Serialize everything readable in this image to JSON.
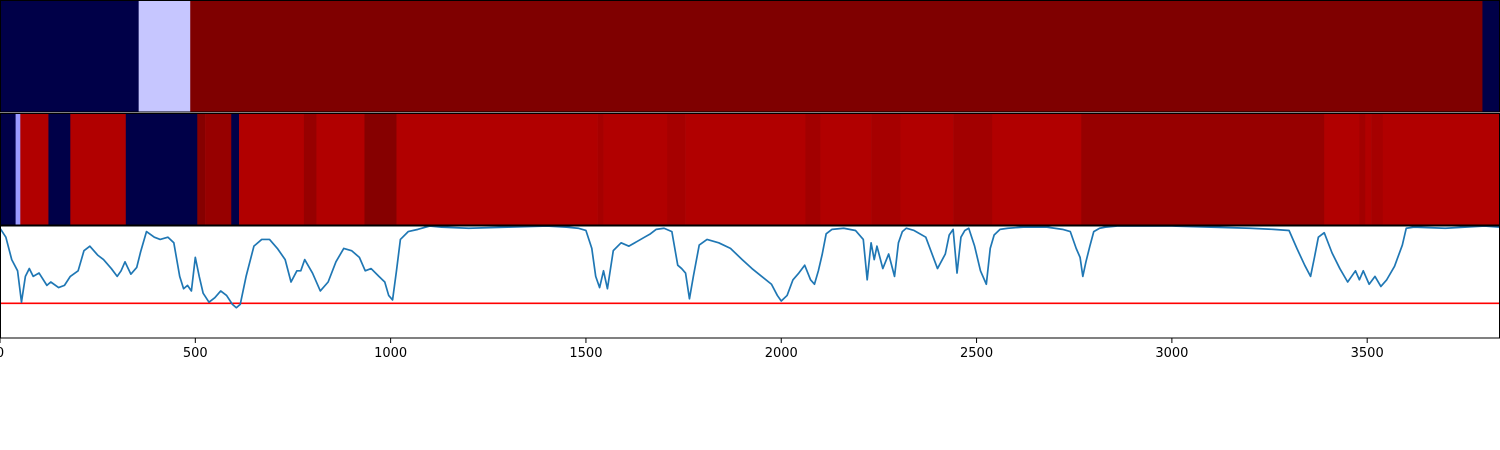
{
  "chart_data": [
    {
      "type": "heatmap",
      "panel": "top-strip",
      "colors": {
        "dark_blue": "#000048",
        "light_blue": "#c6c6ff",
        "dark_red": "#7f0000"
      },
      "segments": [
        {
          "start": 0,
          "end": 355,
          "color": "#000048"
        },
        {
          "start": 355,
          "end": 487,
          "color": "#c6c6ff"
        },
        {
          "start": 487,
          "end": 3795,
          "color": "#7f0000"
        },
        {
          "start": 3795,
          "end": 3840,
          "color": "#000048"
        }
      ]
    },
    {
      "type": "heatmap",
      "panel": "middle-strip",
      "colors": {
        "navy": "#000048",
        "lavender": "#9a9aff",
        "red": "#b10000",
        "dark_red": "#970000",
        "deep_red": "#860000"
      },
      "segments": [
        {
          "start": 0,
          "end": 40,
          "color": "#000048"
        },
        {
          "start": 40,
          "end": 52,
          "color": "#9a9aff"
        },
        {
          "start": 52,
          "end": 124,
          "color": "#b10000"
        },
        {
          "start": 124,
          "end": 180,
          "color": "#000048"
        },
        {
          "start": 180,
          "end": 322,
          "color": "#b10000"
        },
        {
          "start": 322,
          "end": 505,
          "color": "#000048"
        },
        {
          "start": 505,
          "end": 525,
          "color": "#860000"
        },
        {
          "start": 525,
          "end": 592,
          "color": "#970000"
        },
        {
          "start": 592,
          "end": 612,
          "color": "#000048"
        },
        {
          "start": 612,
          "end": 778,
          "color": "#b10000"
        },
        {
          "start": 778,
          "end": 810,
          "color": "#970000"
        },
        {
          "start": 810,
          "end": 933,
          "color": "#b10000"
        },
        {
          "start": 933,
          "end": 1015,
          "color": "#860000"
        },
        {
          "start": 1015,
          "end": 1530,
          "color": "#b10000"
        },
        {
          "start": 1530,
          "end": 1545,
          "color": "#a60000"
        },
        {
          "start": 1545,
          "end": 1708,
          "color": "#b10000"
        },
        {
          "start": 1708,
          "end": 1755,
          "color": "#a60000"
        },
        {
          "start": 1755,
          "end": 2062,
          "color": "#b10000"
        },
        {
          "start": 2062,
          "end": 2100,
          "color": "#a20000"
        },
        {
          "start": 2100,
          "end": 2230,
          "color": "#b10000"
        },
        {
          "start": 2230,
          "end": 2305,
          "color": "#a60000"
        },
        {
          "start": 2305,
          "end": 2440,
          "color": "#b10000"
        },
        {
          "start": 2440,
          "end": 2540,
          "color": "#a20000"
        },
        {
          "start": 2540,
          "end": 2768,
          "color": "#b10000"
        },
        {
          "start": 2768,
          "end": 3390,
          "color": "#970000"
        },
        {
          "start": 3390,
          "end": 3480,
          "color": "#b10000"
        },
        {
          "start": 3480,
          "end": 3495,
          "color": "#a20000"
        },
        {
          "start": 3495,
          "end": 3510,
          "color": "#b10000"
        },
        {
          "start": 3510,
          "end": 3540,
          "color": "#a60000"
        },
        {
          "start": 3540,
          "end": 3840,
          "color": "#b10000"
        }
      ]
    },
    {
      "type": "line",
      "panel": "bottom-plot",
      "xlim": [
        0,
        3840
      ],
      "ylim": [
        0,
        1
      ],
      "x_ticks": [
        0,
        500,
        1000,
        1500,
        2000,
        2500,
        3000,
        3500
      ],
      "tick_labels": [
        "0",
        "500",
        "1000",
        "1500",
        "2000",
        "2500",
        "3000",
        "3500"
      ],
      "line_color": "#1f77b4",
      "threshold": 0.31,
      "threshold_color": "#ff0000",
      "series": [
        {
          "x": [
            0,
            15,
            30,
            45,
            55,
            65,
            75,
            85,
            100,
            120,
            130,
            150,
            165,
            180,
            200,
            215,
            230,
            250,
            265,
            285,
            300,
            310,
            320,
            335,
            350,
            360,
            375,
            395,
            410,
            430,
            445,
            460,
            470,
            480,
            490,
            500,
            510,
            520,
            535,
            550,
            565,
            580,
            595,
            605,
            615,
            630,
            650,
            670,
            690,
            710,
            730,
            745,
            760,
            770,
            780,
            800,
            820,
            840,
            860,
            880,
            900,
            920,
            935,
            950,
            970,
            985,
            995,
            1005,
            1015,
            1025,
            1045,
            1070,
            1100,
            1130,
            1200,
            1300,
            1400,
            1450,
            1480,
            1500,
            1515,
            1525,
            1535,
            1545,
            1555,
            1570,
            1590,
            1610,
            1630,
            1650,
            1665,
            1680,
            1700,
            1720,
            1735,
            1745,
            1755,
            1765,
            1775,
            1790,
            1810,
            1840,
            1870,
            1900,
            1925,
            1950,
            1975,
            1990,
            2000,
            2015,
            2030,
            2045,
            2060,
            2075,
            2085,
            2095,
            2105,
            2115,
            2130,
            2160,
            2190,
            2210,
            2220,
            2230,
            2238,
            2245,
            2260,
            2275,
            2290,
            2300,
            2310,
            2320,
            2340,
            2370,
            2400,
            2420,
            2430,
            2440,
            2450,
            2460,
            2470,
            2480,
            2495,
            2510,
            2525,
            2535,
            2545,
            2560,
            2580,
            2620,
            2680,
            2720,
            2740,
            2755,
            2765,
            2772,
            2780,
            2790,
            2800,
            2815,
            2830,
            2860,
            2900,
            2950,
            3000,
            3100,
            3200,
            3260,
            3300,
            3320,
            3340,
            3355,
            3365,
            3375,
            3390,
            3410,
            3430,
            3450,
            3470,
            3480,
            3490,
            3505,
            3520,
            3535,
            3550,
            3570,
            3590,
            3600,
            3620,
            3700,
            3800,
            3840
          ],
          "y": [
            0.98,
            0.9,
            0.7,
            0.6,
            0.32,
            0.55,
            0.62,
            0.55,
            0.58,
            0.47,
            0.5,
            0.45,
            0.47,
            0.55,
            0.6,
            0.78,
            0.82,
            0.74,
            0.7,
            0.62,
            0.55,
            0.6,
            0.68,
            0.57,
            0.63,
            0.77,
            0.95,
            0.9,
            0.88,
            0.9,
            0.85,
            0.55,
            0.44,
            0.47,
            0.42,
            0.72,
            0.55,
            0.4,
            0.32,
            0.36,
            0.42,
            0.38,
            0.3,
            0.27,
            0.3,
            0.55,
            0.82,
            0.88,
            0.88,
            0.8,
            0.7,
            0.5,
            0.6,
            0.6,
            0.7,
            0.58,
            0.42,
            0.5,
            0.68,
            0.8,
            0.78,
            0.72,
            0.6,
            0.62,
            0.55,
            0.5,
            0.38,
            0.34,
            0.6,
            0.88,
            0.95,
            0.97,
            1.0,
            0.99,
            0.98,
            0.99,
            1.0,
            0.99,
            0.98,
            0.96,
            0.8,
            0.55,
            0.45,
            0.6,
            0.44,
            0.78,
            0.85,
            0.82,
            0.86,
            0.9,
            0.93,
            0.97,
            0.98,
            0.95,
            0.65,
            0.62,
            0.58,
            0.35,
            0.55,
            0.83,
            0.88,
            0.85,
            0.8,
            0.7,
            0.62,
            0.55,
            0.48,
            0.38,
            0.33,
            0.38,
            0.52,
            0.58,
            0.65,
            0.52,
            0.48,
            0.6,
            0.75,
            0.93,
            0.97,
            0.98,
            0.96,
            0.88,
            0.52,
            0.85,
            0.7,
            0.82,
            0.62,
            0.75,
            0.55,
            0.85,
            0.95,
            0.98,
            0.96,
            0.9,
            0.62,
            0.75,
            0.92,
            0.97,
            0.58,
            0.9,
            0.96,
            0.98,
            0.82,
            0.6,
            0.48,
            0.8,
            0.92,
            0.97,
            0.98,
            0.99,
            0.99,
            0.97,
            0.95,
            0.8,
            0.72,
            0.55,
            0.68,
            0.82,
            0.95,
            0.98,
            0.99,
            1.0,
            1.0,
            1.0,
            1.0,
            0.99,
            0.98,
            0.97,
            0.96,
            0.8,
            0.65,
            0.55,
            0.72,
            0.9,
            0.94,
            0.76,
            0.62,
            0.5,
            0.6,
            0.52,
            0.6,
            0.48,
            0.55,
            0.46,
            0.52,
            0.64,
            0.83,
            0.98,
            0.99,
            0.98,
            1.0,
            0.99
          ]
        }
      ]
    }
  ]
}
